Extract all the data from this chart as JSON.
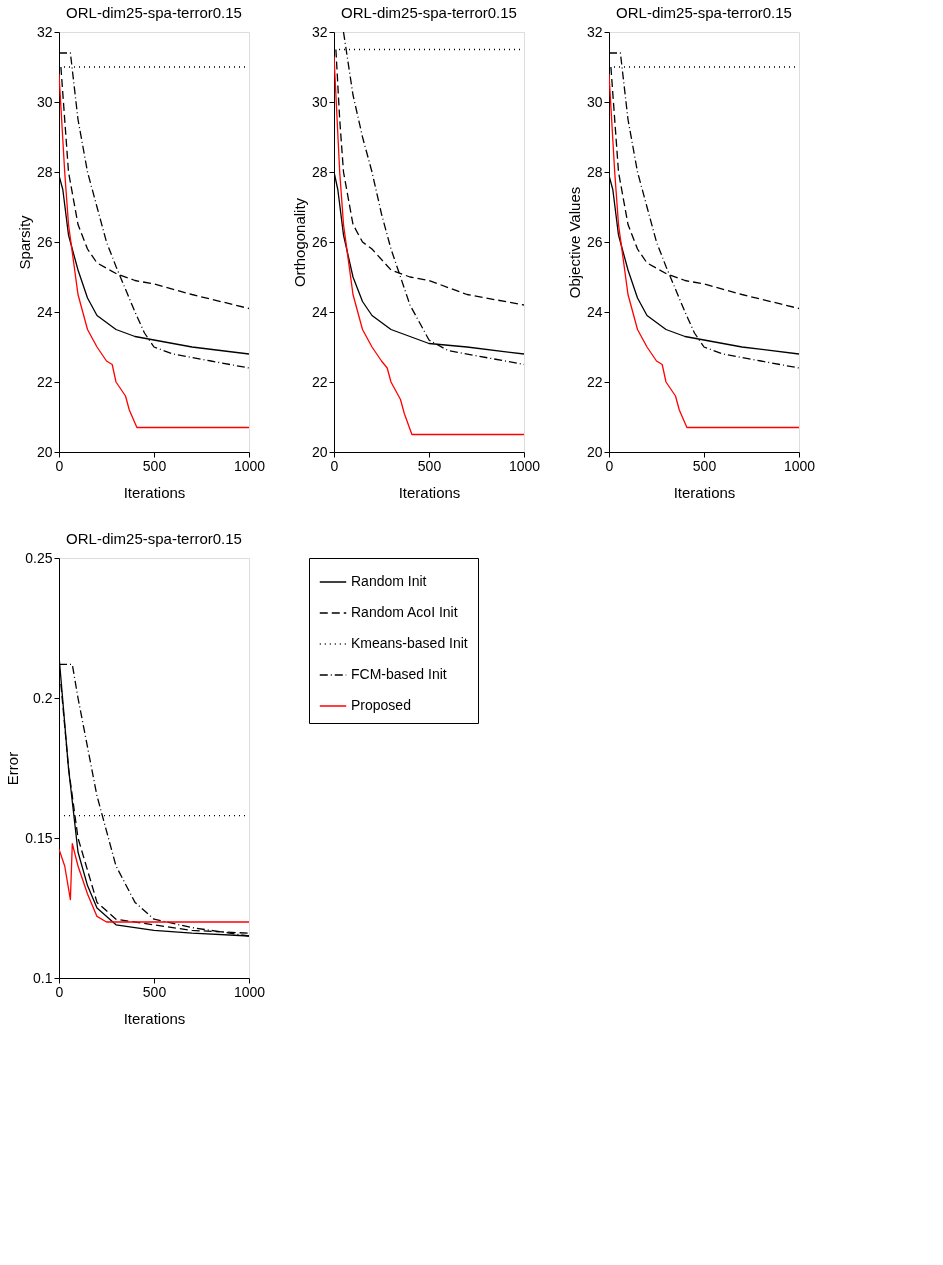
{
  "chart_data": [
    {
      "type": "line",
      "title": "ORL-dim25-spa-terror0.15",
      "xlabel": "Iterations",
      "ylabel": "Sparsity",
      "xlim": [
        0,
        1000
      ],
      "ylim": [
        20,
        32
      ],
      "xticks": [
        0,
        500,
        1000
      ],
      "yticks": [
        20,
        22,
        24,
        26,
        28,
        30,
        32
      ],
      "grid": false,
      "legend": false,
      "series": [
        {
          "color": "#000000",
          "line_style": "solid",
          "x": [
            0,
            20,
            50,
            100,
            150,
            200,
            300,
            400,
            500,
            700,
            1000
          ],
          "values": [
            27.9,
            27.5,
            26.2,
            25.2,
            24.4,
            23.9,
            23.5,
            23.3,
            23.2,
            23.0,
            22.8
          ]
        },
        {
          "color": "#000000",
          "line_style": "dashed",
          "x": [
            10,
            30,
            50,
            100,
            150,
            200,
            300,
            400,
            500,
            700,
            1000
          ],
          "values": [
            31.0,
            29.5,
            28.0,
            26.5,
            25.8,
            25.4,
            25.1,
            24.9,
            24.8,
            24.5,
            24.1
          ]
        },
        {
          "color": "#000000",
          "line_style": "dotted",
          "x": [
            0,
            1000
          ],
          "values": [
            31.0,
            31.0
          ]
        },
        {
          "color": "#000000",
          "line_style": "dashdot",
          "x": [
            0,
            60,
            100,
            150,
            200,
            250,
            300,
            400,
            450,
            500,
            600,
            800,
            1000
          ],
          "values": [
            31.4,
            31.4,
            29.5,
            28.0,
            27.0,
            26.0,
            25.3,
            24.0,
            23.4,
            23.0,
            22.8,
            22.6,
            22.4
          ]
        },
        {
          "color": "#ff0000",
          "line_style": "solid",
          "x": [
            0,
            30,
            50,
            100,
            150,
            200,
            250,
            280,
            300,
            350,
            370,
            410,
            1000
          ],
          "values": [
            30.8,
            28.0,
            26.5,
            24.5,
            23.5,
            23.0,
            22.6,
            22.5,
            22.0,
            21.6,
            21.2,
            20.7,
            20.7
          ]
        }
      ]
    },
    {
      "type": "line",
      "title": "ORL-dim25-spa-terror0.15",
      "xlabel": "Iterations",
      "ylabel": "Orthogonality",
      "xlim": [
        0,
        1000
      ],
      "ylim": [
        20,
        32
      ],
      "xticks": [
        0,
        500,
        1000
      ],
      "yticks": [
        20,
        22,
        24,
        26,
        28,
        30,
        32
      ],
      "grid": false,
      "legend": false,
      "series": [
        {
          "color": "#000000",
          "line_style": "solid",
          "x": [
            0,
            20,
            50,
            100,
            150,
            200,
            300,
            400,
            500,
            700,
            1000
          ],
          "values": [
            28.0,
            27.5,
            26.2,
            25.0,
            24.3,
            23.9,
            23.5,
            23.3,
            23.1,
            23.0,
            22.8
          ]
        },
        {
          "color": "#000000",
          "line_style": "dashed",
          "x": [
            10,
            30,
            50,
            100,
            150,
            200,
            300,
            400,
            500,
            700,
            1000
          ],
          "values": [
            31.5,
            29.5,
            28.0,
            26.5,
            26.0,
            25.8,
            25.2,
            25.0,
            24.9,
            24.5,
            24.2
          ]
        },
        {
          "color": "#000000",
          "line_style": "dotted",
          "x": [
            0,
            1000
          ],
          "values": [
            31.5,
            31.5
          ]
        },
        {
          "color": "#000000",
          "line_style": "dashdot",
          "x": [
            50,
            100,
            150,
            200,
            250,
            300,
            350,
            400,
            450,
            500,
            600,
            800,
            1000
          ],
          "values": [
            32.0,
            30.2,
            29.0,
            28.0,
            26.8,
            25.8,
            25.0,
            24.2,
            23.7,
            23.2,
            22.9,
            22.7,
            22.5
          ]
        },
        {
          "color": "#ff0000",
          "line_style": "solid",
          "x": [
            0,
            30,
            50,
            100,
            150,
            200,
            250,
            280,
            300,
            350,
            370,
            410,
            1000
          ],
          "values": [
            31.3,
            28.0,
            26.5,
            24.5,
            23.5,
            23.0,
            22.6,
            22.4,
            22.0,
            21.5,
            21.1,
            20.5,
            20.5
          ]
        }
      ]
    },
    {
      "type": "line",
      "title": "ORL-dim25-spa-terror0.15",
      "xlabel": "Iterations",
      "ylabel": "Objective Values",
      "xlim": [
        0,
        1000
      ],
      "ylim": [
        20,
        32
      ],
      "xticks": [
        0,
        500,
        1000
      ],
      "yticks": [
        20,
        22,
        24,
        26,
        28,
        30,
        32
      ],
      "grid": false,
      "legend": false,
      "series": [
        {
          "color": "#000000",
          "line_style": "solid",
          "x": [
            0,
            20,
            50,
            100,
            150,
            200,
            300,
            400,
            500,
            700,
            1000
          ],
          "values": [
            27.9,
            27.5,
            26.2,
            25.2,
            24.4,
            23.9,
            23.5,
            23.3,
            23.2,
            23.0,
            22.8
          ]
        },
        {
          "color": "#000000",
          "line_style": "dashed",
          "x": [
            10,
            30,
            50,
            100,
            150,
            200,
            300,
            400,
            500,
            700,
            1000
          ],
          "values": [
            31.0,
            29.5,
            28.0,
            26.5,
            25.8,
            25.4,
            25.1,
            24.9,
            24.8,
            24.5,
            24.1
          ]
        },
        {
          "color": "#000000",
          "line_style": "dotted",
          "x": [
            0,
            1000
          ],
          "values": [
            31.0,
            31.0
          ]
        },
        {
          "color": "#000000",
          "line_style": "dashdot",
          "x": [
            0,
            60,
            100,
            150,
            200,
            250,
            300,
            400,
            450,
            500,
            600,
            800,
            1000
          ],
          "values": [
            31.4,
            31.4,
            29.5,
            28.0,
            27.0,
            26.0,
            25.3,
            24.0,
            23.4,
            23.0,
            22.8,
            22.6,
            22.4
          ]
        },
        {
          "color": "#ff0000",
          "line_style": "solid",
          "x": [
            0,
            30,
            50,
            100,
            150,
            200,
            250,
            280,
            300,
            350,
            370,
            410,
            1000
          ],
          "values": [
            30.8,
            28.0,
            26.5,
            24.5,
            23.5,
            23.0,
            22.6,
            22.5,
            22.0,
            21.6,
            21.2,
            20.7,
            20.7
          ]
        }
      ]
    },
    {
      "type": "line",
      "title": "ORL-dim25-spa-terror0.15",
      "xlabel": "Iterations",
      "ylabel": "Error",
      "xlim": [
        0,
        1000
      ],
      "ylim": [
        0.1,
        0.25
      ],
      "xticks": [
        0,
        500,
        1000
      ],
      "yticks": [
        0.1,
        0.15,
        0.2,
        0.25
      ],
      "grid": false,
      "legend": "right",
      "series": [
        {
          "name": "Random Init",
          "color": "#000000",
          "line_style": "solid",
          "x": [
            0,
            50,
            100,
            150,
            200,
            300,
            500,
            700,
            1000
          ],
          "values": [
            0.215,
            0.175,
            0.145,
            0.133,
            0.125,
            0.119,
            0.117,
            0.116,
            0.115
          ]
        },
        {
          "name": "Random AcoI Init",
          "color": "#000000",
          "line_style": "dashed",
          "x": [
            10,
            50,
            100,
            200,
            300,
            500,
            700,
            1000
          ],
          "values": [
            0.205,
            0.175,
            0.15,
            0.127,
            0.121,
            0.119,
            0.117,
            0.116
          ]
        },
        {
          "name": "Kmeans-based Init",
          "color": "#000000",
          "line_style": "dotted",
          "x": [
            0,
            1000
          ],
          "values": [
            0.158,
            0.158
          ]
        },
        {
          "name": "FCM-based Init",
          "color": "#000000",
          "line_style": "dashdot",
          "x": [
            0,
            70,
            100,
            200,
            300,
            400,
            500,
            700,
            1000
          ],
          "values": [
            0.212,
            0.212,
            0.2,
            0.165,
            0.14,
            0.127,
            0.121,
            0.118,
            0.115
          ]
        },
        {
          "name": "Proposed",
          "color": "#ff0000",
          "line_style": "solid",
          "x": [
            0,
            30,
            60,
            70,
            100,
            150,
            200,
            250,
            1000
          ],
          "values": [
            0.146,
            0.14,
            0.128,
            0.148,
            0.14,
            0.13,
            0.122,
            0.12,
            0.12
          ]
        }
      ]
    }
  ]
}
